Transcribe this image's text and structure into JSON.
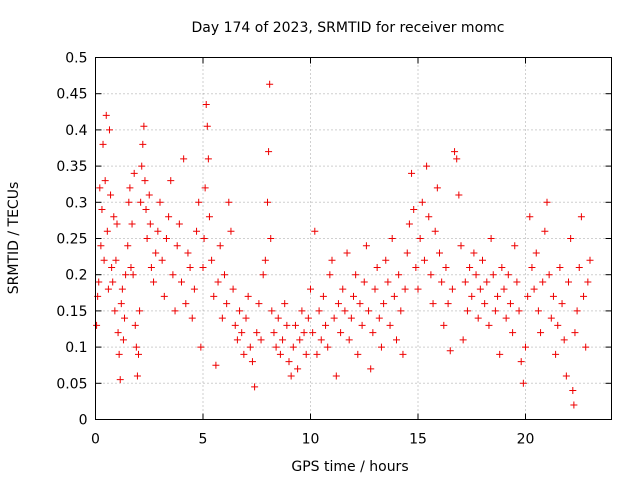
{
  "chart_data": {
    "type": "scatter",
    "title": "Day 174 of 2023, SRMTID for receiver momc",
    "xlabel": "GPS time / hours",
    "ylabel": "SRMTID / TECUs",
    "xlim": [
      0,
      24
    ],
    "ylim": [
      0,
      0.5
    ],
    "xticks": [
      0,
      5,
      10,
      15,
      20
    ],
    "xtick_labels": [
      "0",
      "5",
      "10",
      "15",
      "20"
    ],
    "yticks": [
      0,
      0.05,
      0.1,
      0.15,
      0.2,
      0.25,
      0.3,
      0.35,
      0.4,
      0.45,
      0.5
    ],
    "ytick_labels": [
      "0",
      "0.05",
      "0.1",
      "0.15",
      "0.2",
      "0.25",
      "0.3",
      "0.35",
      "0.4",
      "0.45",
      "0.5"
    ],
    "grid": true,
    "marker": "plus",
    "color": "#ee0000",
    "series": [
      {
        "name": "SRMTID",
        "points": [
          [
            0.05,
            0.13
          ],
          [
            0.1,
            0.17
          ],
          [
            0.15,
            0.19
          ],
          [
            0.2,
            0.32
          ],
          [
            0.25,
            0.24
          ],
          [
            0.3,
            0.29
          ],
          [
            0.35,
            0.38
          ],
          [
            0.4,
            0.22
          ],
          [
            0.45,
            0.33
          ],
          [
            0.5,
            0.42
          ],
          [
            0.55,
            0.26
          ],
          [
            0.6,
            0.18
          ],
          [
            0.65,
            0.4
          ],
          [
            0.7,
            0.31
          ],
          [
            0.75,
            0.21
          ],
          [
            0.8,
            0.19
          ],
          [
            0.85,
            0.28
          ],
          [
            0.9,
            0.15
          ],
          [
            0.95,
            0.22
          ],
          [
            1.0,
            0.27
          ],
          [
            1.05,
            0.12
          ],
          [
            1.1,
            0.09
          ],
          [
            1.15,
            0.055
          ],
          [
            1.2,
            0.16
          ],
          [
            1.25,
            0.18
          ],
          [
            1.3,
            0.11
          ],
          [
            1.35,
            0.14
          ],
          [
            1.4,
            0.2
          ],
          [
            1.5,
            0.24
          ],
          [
            1.55,
            0.3
          ],
          [
            1.6,
            0.32
          ],
          [
            1.65,
            0.21
          ],
          [
            1.7,
            0.27
          ],
          [
            1.75,
            0.2
          ],
          [
            1.8,
            0.34
          ],
          [
            1.85,
            0.13
          ],
          [
            1.9,
            0.1
          ],
          [
            1.95,
            0.06
          ],
          [
            2.0,
            0.09
          ],
          [
            2.05,
            0.15
          ],
          [
            2.1,
            0.3
          ],
          [
            2.15,
            0.35
          ],
          [
            2.2,
            0.38
          ],
          [
            2.25,
            0.405
          ],
          [
            2.3,
            0.33
          ],
          [
            2.35,
            0.29
          ],
          [
            2.4,
            0.25
          ],
          [
            2.5,
            0.31
          ],
          [
            2.55,
            0.27
          ],
          [
            2.6,
            0.21
          ],
          [
            2.7,
            0.19
          ],
          [
            2.8,
            0.23
          ],
          [
            2.9,
            0.26
          ],
          [
            3.0,
            0.3
          ],
          [
            3.1,
            0.22
          ],
          [
            3.2,
            0.17
          ],
          [
            3.3,
            0.25
          ],
          [
            3.4,
            0.28
          ],
          [
            3.5,
            0.33
          ],
          [
            3.6,
            0.2
          ],
          [
            3.7,
            0.15
          ],
          [
            3.8,
            0.24
          ],
          [
            3.9,
            0.27
          ],
          [
            4.0,
            0.19
          ],
          [
            4.1,
            0.36
          ],
          [
            4.2,
            0.16
          ],
          [
            4.3,
            0.23
          ],
          [
            4.4,
            0.21
          ],
          [
            4.5,
            0.14
          ],
          [
            4.6,
            0.18
          ],
          [
            4.7,
            0.26
          ],
          [
            4.8,
            0.3
          ],
          [
            4.9,
            0.1
          ],
          [
            5.0,
            0.21
          ],
          [
            5.05,
            0.25
          ],
          [
            5.1,
            0.32
          ],
          [
            5.15,
            0.435
          ],
          [
            5.2,
            0.405
          ],
          [
            5.25,
            0.36
          ],
          [
            5.3,
            0.28
          ],
          [
            5.4,
            0.22
          ],
          [
            5.5,
            0.17
          ],
          [
            5.6,
            0.075
          ],
          [
            5.7,
            0.19
          ],
          [
            5.8,
            0.24
          ],
          [
            5.9,
            0.14
          ],
          [
            6.0,
            0.2
          ],
          [
            6.1,
            0.16
          ],
          [
            6.2,
            0.3
          ],
          [
            6.3,
            0.26
          ],
          [
            6.4,
            0.18
          ],
          [
            6.5,
            0.13
          ],
          [
            6.6,
            0.11
          ],
          [
            6.7,
            0.15
          ],
          [
            6.8,
            0.12
          ],
          [
            6.9,
            0.09
          ],
          [
            7.0,
            0.14
          ],
          [
            7.1,
            0.17
          ],
          [
            7.2,
            0.1
          ],
          [
            7.3,
            0.08
          ],
          [
            7.4,
            0.045
          ],
          [
            7.5,
            0.12
          ],
          [
            7.6,
            0.16
          ],
          [
            7.7,
            0.11
          ],
          [
            7.8,
            0.2
          ],
          [
            7.9,
            0.22
          ],
          [
            8.0,
            0.3
          ],
          [
            8.05,
            0.37
          ],
          [
            8.1,
            0.463
          ],
          [
            8.15,
            0.25
          ],
          [
            8.2,
            0.15
          ],
          [
            8.3,
            0.12
          ],
          [
            8.4,
            0.1
          ],
          [
            8.5,
            0.14
          ],
          [
            8.6,
            0.09
          ],
          [
            8.7,
            0.11
          ],
          [
            8.8,
            0.16
          ],
          [
            8.9,
            0.13
          ],
          [
            9.0,
            0.08
          ],
          [
            9.1,
            0.06
          ],
          [
            9.2,
            0.1
          ],
          [
            9.3,
            0.13
          ],
          [
            9.4,
            0.07
          ],
          [
            9.5,
            0.11
          ],
          [
            9.6,
            0.15
          ],
          [
            9.7,
            0.12
          ],
          [
            9.8,
            0.09
          ],
          [
            9.9,
            0.14
          ],
          [
            10.0,
            0.18
          ],
          [
            10.1,
            0.12
          ],
          [
            10.2,
            0.26
          ],
          [
            10.3,
            0.09
          ],
          [
            10.4,
            0.15
          ],
          [
            10.5,
            0.11
          ],
          [
            10.6,
            0.17
          ],
          [
            10.7,
            0.13
          ],
          [
            10.8,
            0.1
          ],
          [
            10.9,
            0.2
          ],
          [
            11.0,
            0.22
          ],
          [
            11.1,
            0.14
          ],
          [
            11.2,
            0.06
          ],
          [
            11.3,
            0.16
          ],
          [
            11.4,
            0.12
          ],
          [
            11.5,
            0.18
          ],
          [
            11.6,
            0.15
          ],
          [
            11.7,
            0.23
          ],
          [
            11.8,
            0.11
          ],
          [
            11.9,
            0.14
          ],
          [
            12.0,
            0.17
          ],
          [
            12.1,
            0.2
          ],
          [
            12.2,
            0.09
          ],
          [
            12.3,
            0.16
          ],
          [
            12.4,
            0.13
          ],
          [
            12.5,
            0.19
          ],
          [
            12.6,
            0.24
          ],
          [
            12.7,
            0.15
          ],
          [
            12.8,
            0.07
          ],
          [
            12.9,
            0.12
          ],
          [
            13.0,
            0.18
          ],
          [
            13.1,
            0.21
          ],
          [
            13.2,
            0.14
          ],
          [
            13.3,
            0.1
          ],
          [
            13.4,
            0.16
          ],
          [
            13.5,
            0.22
          ],
          [
            13.6,
            0.19
          ],
          [
            13.7,
            0.13
          ],
          [
            13.8,
            0.25
          ],
          [
            13.9,
            0.17
          ],
          [
            14.0,
            0.11
          ],
          [
            14.1,
            0.2
          ],
          [
            14.2,
            0.15
          ],
          [
            14.3,
            0.09
          ],
          [
            14.4,
            0.18
          ],
          [
            14.5,
            0.23
          ],
          [
            14.6,
            0.27
          ],
          [
            14.7,
            0.34
          ],
          [
            14.8,
            0.29
          ],
          [
            14.9,
            0.21
          ],
          [
            15.0,
            0.18
          ],
          [
            15.1,
            0.25
          ],
          [
            15.2,
            0.3
          ],
          [
            15.3,
            0.22
          ],
          [
            15.4,
            0.35
          ],
          [
            15.5,
            0.28
          ],
          [
            15.6,
            0.2
          ],
          [
            15.7,
            0.16
          ],
          [
            15.8,
            0.26
          ],
          [
            15.9,
            0.32
          ],
          [
            16.0,
            0.23
          ],
          [
            16.1,
            0.19
          ],
          [
            16.2,
            0.13
          ],
          [
            16.3,
            0.21
          ],
          [
            16.4,
            0.16
          ],
          [
            16.5,
            0.095
          ],
          [
            16.6,
            0.18
          ],
          [
            16.7,
            0.37
          ],
          [
            16.8,
            0.36
          ],
          [
            16.9,
            0.31
          ],
          [
            17.0,
            0.24
          ],
          [
            17.1,
            0.11
          ],
          [
            17.2,
            0.19
          ],
          [
            17.3,
            0.15
          ],
          [
            17.4,
            0.21
          ],
          [
            17.5,
            0.17
          ],
          [
            17.6,
            0.23
          ],
          [
            17.7,
            0.2
          ],
          [
            17.8,
            0.14
          ],
          [
            17.9,
            0.18
          ],
          [
            18.0,
            0.22
          ],
          [
            18.1,
            0.16
          ],
          [
            18.2,
            0.19
          ],
          [
            18.3,
            0.13
          ],
          [
            18.4,
            0.25
          ],
          [
            18.5,
            0.2
          ],
          [
            18.6,
            0.15
          ],
          [
            18.7,
            0.17
          ],
          [
            18.8,
            0.09
          ],
          [
            18.9,
            0.21
          ],
          [
            19.0,
            0.18
          ],
          [
            19.1,
            0.14
          ],
          [
            19.2,
            0.2
          ],
          [
            19.3,
            0.16
          ],
          [
            19.4,
            0.12
          ],
          [
            19.5,
            0.24
          ],
          [
            19.6,
            0.19
          ],
          [
            19.7,
            0.15
          ],
          [
            19.8,
            0.08
          ],
          [
            19.9,
            0.05
          ],
          [
            20.0,
            0.1
          ],
          [
            20.1,
            0.17
          ],
          [
            20.2,
            0.28
          ],
          [
            20.3,
            0.21
          ],
          [
            20.4,
            0.18
          ],
          [
            20.5,
            0.23
          ],
          [
            20.6,
            0.15
          ],
          [
            20.7,
            0.12
          ],
          [
            20.8,
            0.19
          ],
          [
            20.9,
            0.26
          ],
          [
            21.0,
            0.3
          ],
          [
            21.1,
            0.2
          ],
          [
            21.2,
            0.14
          ],
          [
            21.3,
            0.17
          ],
          [
            21.4,
            0.09
          ],
          [
            21.5,
            0.13
          ],
          [
            21.6,
            0.21
          ],
          [
            21.7,
            0.16
          ],
          [
            21.8,
            0.11
          ],
          [
            21.9,
            0.06
          ],
          [
            22.0,
            0.19
          ],
          [
            22.1,
            0.25
          ],
          [
            22.2,
            0.04
          ],
          [
            22.25,
            0.02
          ],
          [
            22.3,
            0.12
          ],
          [
            22.4,
            0.15
          ],
          [
            22.5,
            0.21
          ],
          [
            22.6,
            0.28
          ],
          [
            22.7,
            0.17
          ],
          [
            22.8,
            0.1
          ],
          [
            22.9,
            0.19
          ],
          [
            23.0,
            0.22
          ]
        ]
      }
    ]
  }
}
